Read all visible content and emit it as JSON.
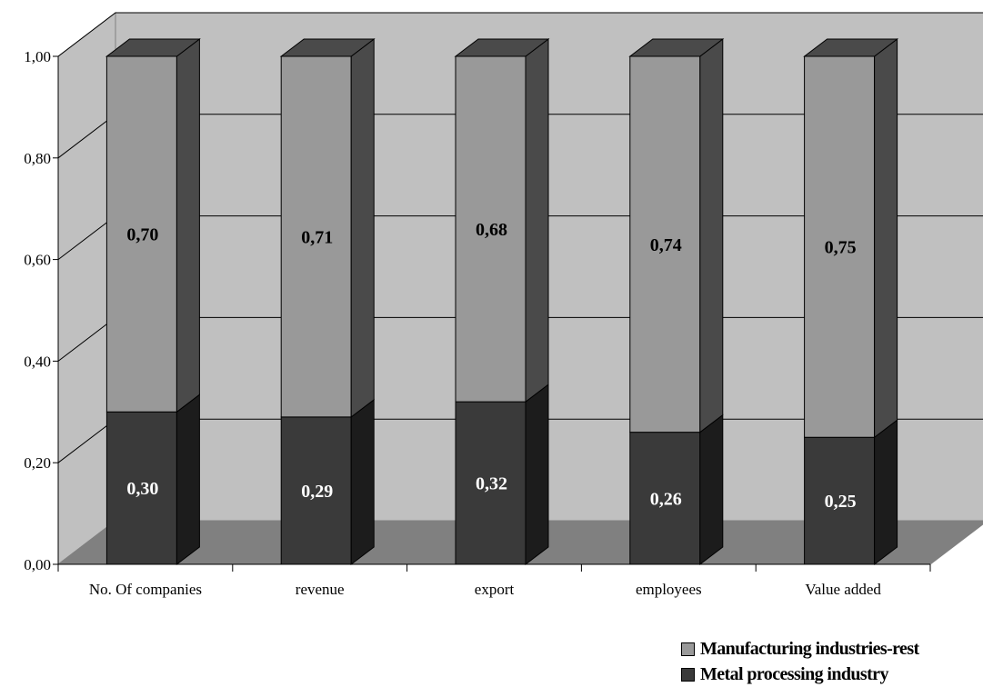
{
  "chart_data": {
    "type": "bar",
    "stacked": true,
    "three_d": true,
    "categories": [
      "No. Of companies",
      "revenue",
      "export",
      "employees",
      "Value added"
    ],
    "series": [
      {
        "name": "Metal processing industry",
        "values": [
          0.3,
          0.29,
          0.32,
          0.26,
          0.25
        ],
        "labels": [
          "0,30",
          "0,29",
          "0,32",
          "0,26",
          "0,25"
        ],
        "color": "#3a3a3a"
      },
      {
        "name": "Manufacturing industries-rest",
        "values": [
          0.7,
          0.71,
          0.68,
          0.74,
          0.75
        ],
        "labels": [
          "0,70",
          "0,71",
          "0,68",
          "0,74",
          "0,75"
        ],
        "color": "#999999"
      }
    ],
    "ylim": [
      0,
      1
    ],
    "yticks": [
      0,
      0.2,
      0.4,
      0.6,
      0.8,
      1.0
    ],
    "ytick_labels": [
      "0,00",
      "0,20",
      "0,40",
      "0,60",
      "0,80",
      "1,00"
    ],
    "grid": true,
    "legend_position": "bottom-right",
    "title": "",
    "xlabel": "",
    "ylabel": ""
  },
  "legend": {
    "items": [
      {
        "label": "Manufacturing industries-rest",
        "color": "#999999"
      },
      {
        "label": "Metal processing industry",
        "color": "#3a3a3a"
      }
    ]
  }
}
